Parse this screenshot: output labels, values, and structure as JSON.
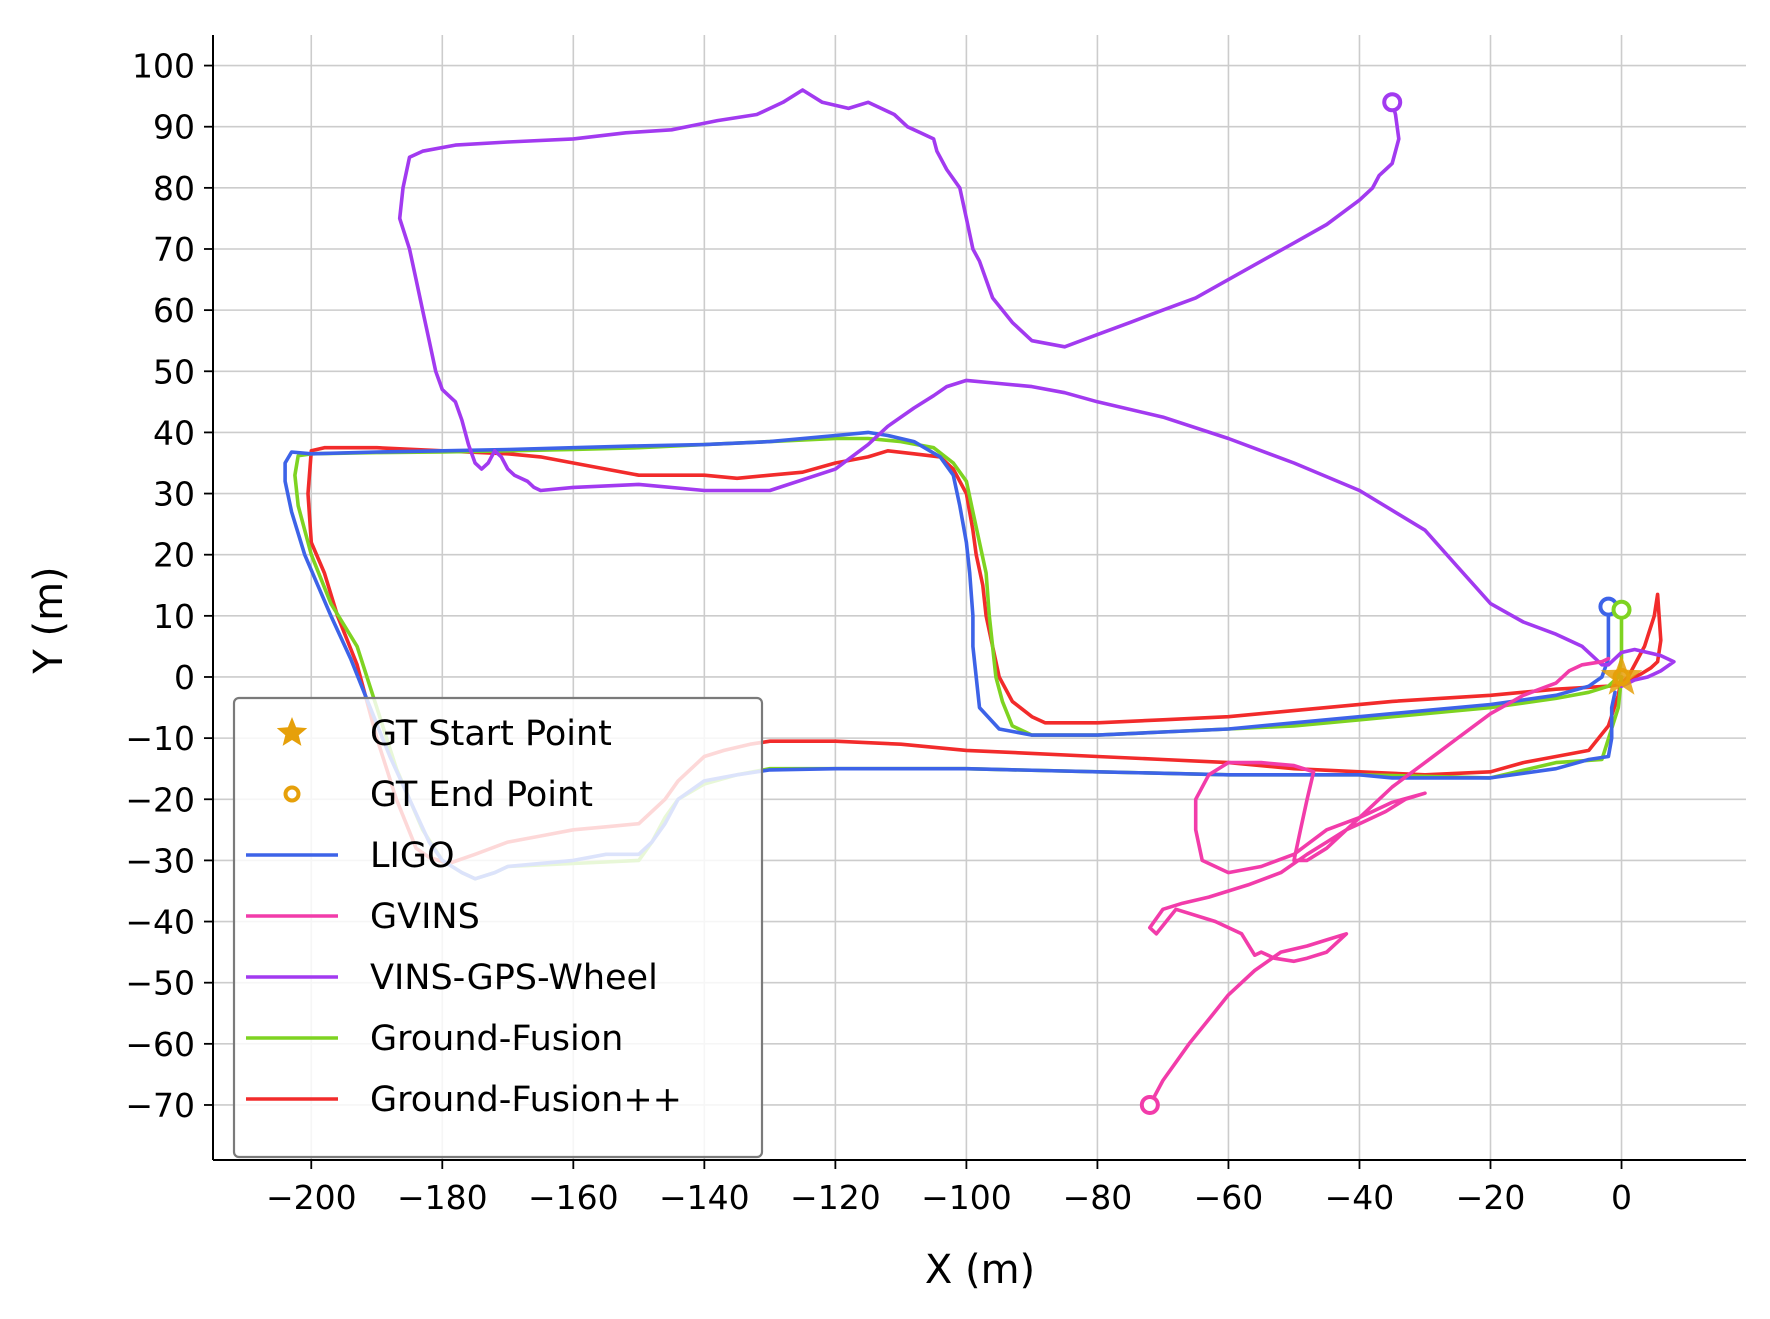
{
  "chart_data": {
    "type": "line",
    "xlabel": "X (m)",
    "ylabel": "Y (m)",
    "xlim": [
      -215,
      19
    ],
    "ylim": [
      -79,
      105
    ],
    "xticks": [
      -200,
      -180,
      -160,
      -140,
      -120,
      -100,
      -80,
      -60,
      -40,
      -20,
      0
    ],
    "yticks": [
      100,
      90,
      80,
      70,
      60,
      50,
      40,
      30,
      20,
      10,
      0,
      -10,
      -20,
      -30,
      -40,
      -50,
      -60,
      -70
    ],
    "grid": true,
    "legend_position": "lower-left",
    "legend": [
      {
        "label": "GT Start Point",
        "marker": "star",
        "color": "#E6A00A"
      },
      {
        "label": "GT End Point",
        "marker": "ring",
        "color": "#E6A00A"
      },
      {
        "label": "LIGO",
        "marker": "line",
        "color": "#3D63E8"
      },
      {
        "label": "GVINS",
        "marker": "line",
        "color": "#F23CAA"
      },
      {
        "label": "VINS-GPS-Wheel",
        "marker": "line",
        "color": "#A23AF0"
      },
      {
        "label": "Ground-Fusion",
        "marker": "line",
        "color": "#7ED321"
      },
      {
        "label": "Ground-Fusion++",
        "marker": "line",
        "color": "#F22B2B"
      }
    ],
    "points": [
      {
        "name": "GT Start Point",
        "x": 0,
        "y": 0,
        "marker": "star",
        "color": "#E6A00A"
      },
      {
        "name": "GT End Point",
        "x": 0,
        "y": 0,
        "marker": "ring",
        "color": "#E6A00A"
      }
    ],
    "series": [
      {
        "name": "Ground-Fusion++",
        "color": "#F22B2B",
        "x": [
          0,
          1,
          3.5,
          5,
          5.5,
          6,
          5.5,
          4.5,
          3,
          2,
          1,
          -2,
          -10,
          -20,
          -35,
          -50,
          -60,
          -70,
          -80,
          -88,
          -90,
          -93,
          -95,
          -96,
          -97,
          -97.5,
          -98.5,
          -99,
          -100,
          -102,
          -104,
          -108,
          -112,
          -115,
          -120,
          -125,
          -130,
          -135,
          -140,
          -145,
          -150,
          -155,
          -160,
          -165,
          -170,
          -180,
          -190,
          -198,
          -200,
          -200.5,
          -200,
          -198,
          -196,
          -193,
          -190,
          -187,
          -184,
          -182,
          -179,
          -175,
          -170,
          -165,
          -160,
          -155,
          -150,
          -148,
          -146,
          -144,
          -142,
          -140,
          -137,
          -133,
          -130,
          -125,
          -120,
          -110,
          -100,
          -90,
          -80,
          -70,
          -60,
          -50,
          -40,
          -30,
          -20,
          -15,
          -10,
          -5,
          -2,
          -0.5,
          0
        ],
        "y": [
          -1,
          0,
          5,
          10,
          13.5,
          6,
          2.5,
          1.5,
          0.5,
          0,
          -1,
          -1.5,
          -2,
          -3,
          -4,
          -5.5,
          -6.5,
          -7,
          -7.5,
          -7.5,
          -6.5,
          -4,
          0,
          5,
          10,
          15,
          20,
          24,
          30,
          34,
          36,
          36.5,
          37,
          36,
          35,
          33.5,
          33,
          32.5,
          33,
          33,
          33,
          34,
          35,
          36,
          36.5,
          37,
          37.5,
          37.5,
          37,
          30,
          22,
          17,
          10,
          2,
          -10,
          -20,
          -28,
          -29.5,
          -30.5,
          -29,
          -27,
          -26,
          -25,
          -24.5,
          -24,
          -22,
          -20,
          -17,
          -15,
          -13,
          -12,
          -11,
          -10.5,
          -10.5,
          -10.5,
          -11,
          -12,
          -12.5,
          -13,
          -13.5,
          -14,
          -15,
          -15.5,
          -16,
          -15.5,
          -14,
          -13,
          -12,
          -8,
          -3,
          0
        ]
      },
      {
        "name": "Ground-Fusion",
        "color": "#7ED321",
        "x": [
          0,
          0,
          0,
          -0.5,
          -2,
          -5,
          -10,
          -20,
          -30,
          -40,
          -50,
          -60,
          -70,
          -80,
          -90,
          -93,
          -94.5,
          -95.5,
          -96.5,
          -97,
          -98,
          -99,
          -100,
          -102,
          -105,
          -110,
          -115,
          -120,
          -130,
          -140,
          -150,
          -160,
          -170,
          -180,
          -190,
          -200,
          -202,
          -202.5,
          -202,
          -200,
          -197,
          -193,
          -190,
          -187,
          -183,
          -180,
          -177,
          -175,
          -172,
          -170,
          -160,
          -150,
          -148,
          -146,
          -144,
          -140,
          -135,
          -130,
          -120,
          -110,
          -100,
          -80,
          -60,
          -40,
          -20,
          -10,
          -3,
          -0.5,
          0
        ],
        "y": [
          11,
          7,
          3,
          0,
          -1.5,
          -2.5,
          -3.5,
          -5,
          -6,
          -7,
          -8,
          -8.5,
          -9,
          -9.5,
          -9.5,
          -8,
          -4,
          0,
          10,
          17,
          22,
          27,
          32,
          35,
          37.5,
          38.5,
          39,
          39,
          38.5,
          38,
          37.5,
          37.2,
          37,
          36.8,
          36.7,
          36.5,
          36.2,
          33,
          28,
          20,
          12,
          5,
          -5,
          -15,
          -25,
          -30,
          -32,
          -33,
          -32,
          -31,
          -30.5,
          -30,
          -27,
          -23,
          -20,
          -17.5,
          -16,
          -15,
          -15,
          -15,
          -15,
          -15.5,
          -16,
          -16,
          -16.5,
          -14,
          -13.5,
          -5,
          0
        ]
      },
      {
        "name": "LIGO",
        "color": "#3D63E8",
        "x": [
          -2,
          -2,
          -2,
          -3,
          -5,
          -10,
          -20,
          -30,
          -40,
          -50,
          -60,
          -70,
          -80,
          -90,
          -95,
          -98,
          -98.5,
          -99,
          -99,
          -99.5,
          -100,
          -101,
          -102,
          -104,
          -108,
          -112,
          -115,
          -120,
          -130,
          -140,
          -150,
          -160,
          -170,
          -180,
          -190,
          -200,
          -203,
          -204,
          -204,
          -203,
          -201,
          -199,
          -197,
          -194,
          -191,
          -188,
          -185,
          -182,
          -180,
          -177,
          -175,
          -172,
          -170,
          -160,
          -155,
          -150,
          -148,
          -146,
          -144,
          -140,
          -135,
          -130,
          -120,
          -110,
          -100,
          -80,
          -60,
          -40,
          -35,
          -20,
          -10,
          -5,
          -2,
          -1.5,
          -1.5,
          -1
        ],
        "y": [
          11.5,
          7,
          3,
          0,
          -1.5,
          -3,
          -4.5,
          -5.5,
          -6.5,
          -7.5,
          -8.5,
          -9,
          -9.5,
          -9.5,
          -8.5,
          -5,
          0,
          5,
          10,
          17,
          22,
          28,
          33,
          36,
          38.5,
          39.5,
          40,
          39.5,
          38.5,
          38,
          37.8,
          37.5,
          37.2,
          37,
          36.8,
          36.5,
          36.8,
          35,
          32,
          27,
          20,
          15,
          10,
          3,
          -5,
          -13,
          -20,
          -27,
          -30,
          -32,
          -33,
          -32,
          -31,
          -30,
          -29,
          -29,
          -27,
          -24,
          -20,
          -17,
          -16,
          -15.2,
          -15,
          -15,
          -15,
          -15.5,
          -16,
          -16,
          -16.5,
          -16.5,
          -15,
          -13.5,
          -13,
          -10,
          -5,
          -2.5
        ]
      },
      {
        "name": "VINS-GPS-Wheel",
        "color": "#A23AF0",
        "x": [
          -35,
          -34.5,
          -34,
          -34.5,
          -35,
          -36,
          -37,
          -38,
          -40,
          -45,
          -50,
          -55,
          -60,
          -65,
          -70,
          -75,
          -80,
          -85,
          -90,
          -93,
          -96,
          -98,
          -99,
          -100,
          -101,
          -103,
          -104,
          -104.5,
          -105,
          -107,
          -109,
          -111,
          -113,
          -115,
          -118,
          -122,
          -125,
          -128,
          -132,
          -138,
          -145,
          -152,
          -160,
          -170,
          -178,
          -183,
          -185,
          -186,
          -186.5,
          -185,
          -184,
          -183,
          -182,
          -181,
          -180,
          -179,
          -178,
          -177,
          -176,
          -175,
          -174,
          -173,
          -172,
          -171,
          -170,
          -169,
          -168,
          -167,
          -166,
          -165,
          -160,
          -150,
          -140,
          -130,
          -120,
          -115,
          -112,
          -108,
          -105,
          -103,
          -100,
          -95,
          -90,
          -85,
          -80,
          -70,
          -60,
          -50,
          -40,
          -30,
          -25,
          -20,
          -15,
          -10,
          -6,
          -4,
          -3,
          -2,
          -1,
          0,
          2,
          4,
          6,
          8,
          6,
          4,
          2,
          1,
          0
        ],
        "y": [
          94,
          92,
          88,
          86,
          84,
          83,
          82,
          80,
          78,
          74,
          71,
          68,
          65,
          62,
          60,
          58,
          56,
          54,
          55,
          58,
          62,
          68,
          70,
          75,
          80,
          83,
          85,
          86,
          88,
          89,
          90,
          92,
          93,
          94,
          93,
          94,
          96,
          94,
          92,
          91,
          89.5,
          89,
          88,
          87.5,
          87,
          86,
          85,
          80,
          75,
          70,
          65,
          60,
          55,
          50,
          47,
          46,
          45,
          42,
          38,
          35,
          34,
          35,
          37,
          36,
          34,
          33,
          32.5,
          32,
          31,
          30.5,
          31,
          31.5,
          30.5,
          30.5,
          34,
          38,
          41,
          44,
          46,
          47.5,
          48.5,
          48,
          47.5,
          46.5,
          45,
          42.5,
          39,
          35,
          30.5,
          24,
          18,
          12,
          9,
          7,
          5,
          3,
          2,
          2,
          3,
          4,
          4.5,
          4,
          3.5,
          2.5,
          1,
          0,
          -0.5,
          -1,
          -1.5
        ]
      },
      {
        "name": "GVINS",
        "color": "#F23CAA",
        "x": [
          -72,
          -70,
          -68,
          -66,
          -63,
          -60,
          -56,
          -52,
          -48,
          -45,
          -42,
          -45,
          -48,
          -50,
          -53,
          -55,
          -56,
          -58,
          -62,
          -68,
          -71,
          -72,
          -70,
          -67,
          -63,
          -60,
          -57,
          -52,
          -48,
          -45,
          -42,
          -40,
          -36,
          -33,
          -30,
          -35,
          -40,
          -45,
          -50,
          -55,
          -60,
          -64,
          -65,
          -65,
          -63,
          -60,
          -58,
          -55,
          -50,
          -47,
          -48,
          -49,
          -50,
          -48,
          -45,
          -42,
          -38,
          -35,
          -30,
          -25,
          -20,
          -15,
          -10,
          -8,
          -6,
          -3,
          -2
        ],
        "y": [
          -70,
          -66,
          -63,
          -60,
          -56,
          -52,
          -48,
          -45,
          -44,
          -43,
          -42,
          -45,
          -46,
          -46.5,
          -46,
          -45,
          -45.5,
          -42,
          -40,
          -38,
          -42,
          -41,
          -38,
          -37,
          -36,
          -35,
          -34,
          -32,
          -29,
          -27,
          -25,
          -24,
          -22,
          -20,
          -19,
          -20.5,
          -23,
          -25,
          -29,
          -31,
          -32,
          -30,
          -25,
          -20,
          -16,
          -14,
          -14,
          -14,
          -14.5,
          -15.5,
          -20,
          -25,
          -30,
          -30,
          -28,
          -25,
          -21,
          -18,
          -14,
          -10,
          -6,
          -3,
          -1,
          1,
          2,
          2.5,
          3
        ]
      }
    ],
    "endpoints": [
      {
        "name": "LIGO",
        "x": -2,
        "y": 11.5,
        "color": "#3D63E8"
      },
      {
        "name": "GVINS",
        "x": -72,
        "y": -70,
        "color": "#F23CAA"
      },
      {
        "name": "VINS-GPS-Wheel",
        "x": -35,
        "y": 94,
        "color": "#A23AF0"
      },
      {
        "name": "Ground-Fusion",
        "x": 0,
        "y": 11,
        "color": "#7ED321"
      }
    ]
  }
}
